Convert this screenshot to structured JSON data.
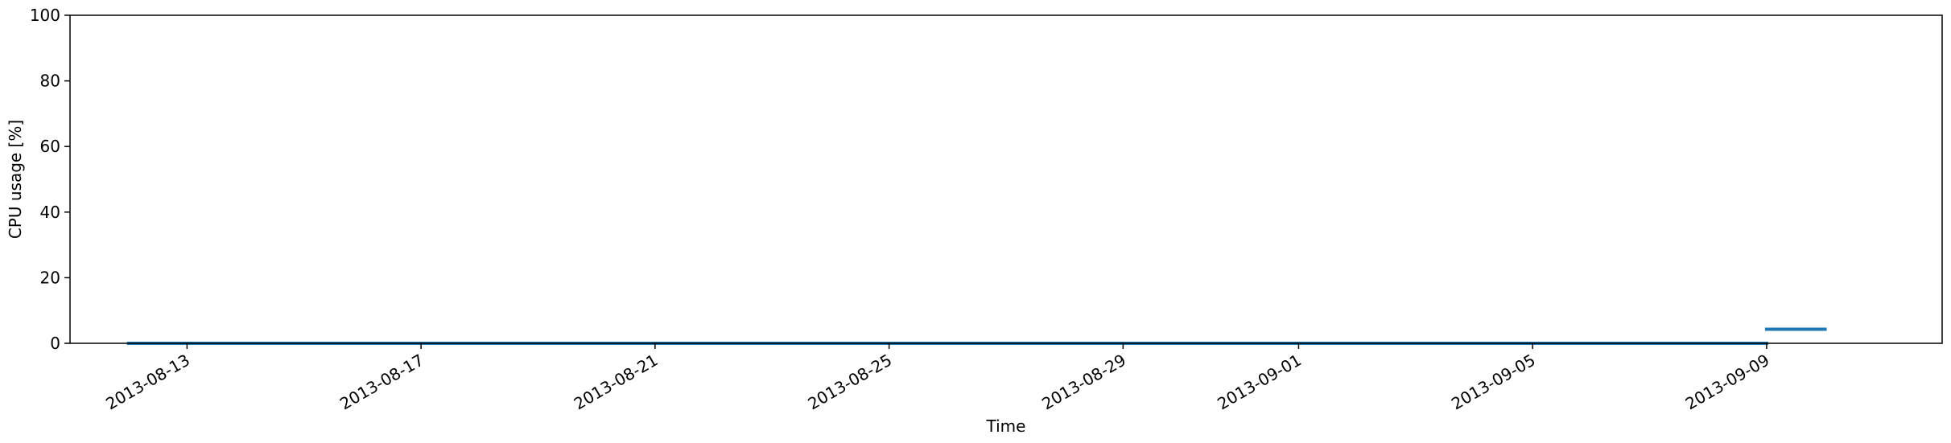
{
  "chart_data": {
    "type": "line",
    "xlabel": "Time",
    "ylabel": "CPU usage [%]",
    "x_range": [
      "2013-08-11",
      "2013-09-12"
    ],
    "ylim": [
      0,
      100
    ],
    "yticks": [
      0,
      20,
      40,
      60,
      80,
      100
    ],
    "xticks": [
      "2013-08-13",
      "2013-08-17",
      "2013-08-21",
      "2013-08-25",
      "2013-08-29",
      "2013-09-01",
      "2013-09-05",
      "2013-09-09"
    ],
    "grid": false,
    "legend": "none",
    "series": [
      {
        "color": "#1f77b4",
        "segments": [
          {
            "x": [
              "2013-08-12",
              "2013-09-09"
            ],
            "y": [
              0,
              0
            ]
          },
          {
            "x": [
              "2013-09-09",
              "2013-09-10"
            ],
            "y": [
              4.3,
              4.3
            ]
          }
        ]
      }
    ]
  }
}
